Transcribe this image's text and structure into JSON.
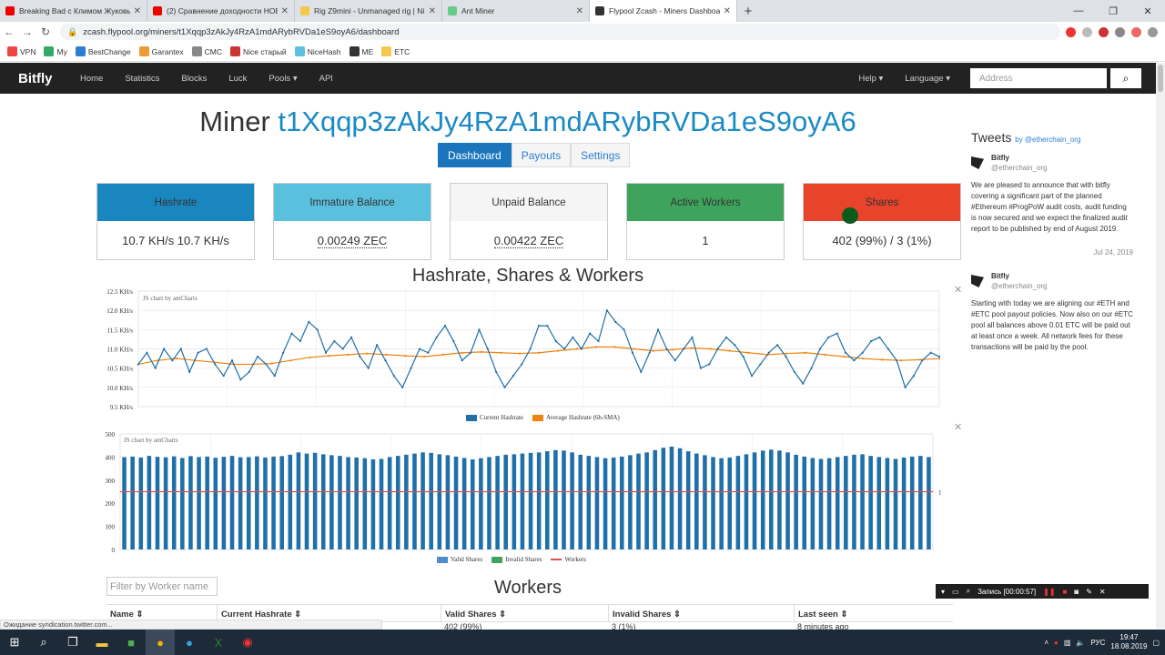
{
  "browser": {
    "tabs": [
      {
        "title": "Breaking Bad с Климом Жуковым",
        "color": "#e00"
      },
      {
        "title": "(2) Сравнение доходности НОВ",
        "color": "#e00"
      },
      {
        "title": "Rig Z9mini - Unmanaged rig | Ni",
        "color": "#f2c94c"
      },
      {
        "title": "Ant Miner",
        "color": "#6c8"
      },
      {
        "title": "Flypool Zcash - Miners Dashboard",
        "color": "#333"
      }
    ],
    "url": "zcash.flypool.org/miners/t1Xqqp3zAkJy4RzA1mdARybRVDa1eS9oyA6/dashboard",
    "bookmarks": [
      "VPN",
      "My",
      "BestChange",
      "Garantex",
      "CMC",
      "Nice старый",
      "NiceHash",
      "ME",
      "ETC"
    ]
  },
  "navbar": {
    "brand": "Bitfly",
    "links": [
      "Home",
      "Statistics",
      "Blocks",
      "Luck",
      "Pools",
      "API"
    ],
    "help": "Help",
    "language": "Language",
    "address_placeholder": "Address"
  },
  "page": {
    "title_prefix": "Miner ",
    "miner_id": "t1Xqqp3zAkJy4RzA1mdARybRVDa1eS9oyA6",
    "tabs": [
      "Dashboard",
      "Payouts",
      "Settings"
    ],
    "cards": [
      {
        "header": "Hashrate",
        "value": "10.7 KH/s  10.7 KH/s",
        "color": "#1a86bf",
        "text": "#333"
      },
      {
        "header": "Immature Balance",
        "value": "0.00249 ZEC",
        "color": "#5bc0de",
        "text": "#333"
      },
      {
        "header": "Unpaid Balance",
        "value": "0.00422 ZEC",
        "color": "#f5f5f5",
        "text": "#333"
      },
      {
        "header": "Active Workers",
        "value": "1",
        "color": "#3ea45d",
        "text": "#333"
      },
      {
        "header": "Shares",
        "value": "402 (99%) / 3 (1%)",
        "color": "#e8432b",
        "text": "#333"
      }
    ],
    "chart_section_title": "Hashrate, Shares & Workers",
    "workers_title": "Workers",
    "filter_placeholder": "Filter by Worker name",
    "table_headers": [
      "Name ⇕",
      "Current Hashrate ⇕",
      "Valid Shares ⇕",
      "Invalid Shares ⇕",
      "Last seen ⇕"
    ],
    "table_row": [
      "",
      "",
      "402 (99%)",
      "3 (1%)",
      "8 minutes ago"
    ]
  },
  "chart_data": [
    {
      "type": "line",
      "credit": "JS chart by amCharts",
      "ylim": [
        9.5,
        12.5
      ],
      "y_ticks": [
        "12.5 KH/s",
        "12.0 KH/s",
        "11.5 KH/s",
        "11.0 KH/s",
        "10.5 KH/s",
        "10.0 KH/s",
        "9.5 KH/s"
      ],
      "series": [
        {
          "name": "Current Hashrate",
          "color": "#1f6fa8",
          "values": [
            10.6,
            10.9,
            10.5,
            11.0,
            10.7,
            11.0,
            10.4,
            10.9,
            11.0,
            10.6,
            10.3,
            10.7,
            10.2,
            10.4,
            10.8,
            10.6,
            10.3,
            10.9,
            11.4,
            11.2,
            11.7,
            11.5,
            10.9,
            11.2,
            11.0,
            11.3,
            10.8,
            10.5,
            11.1,
            10.7,
            10.3,
            10.0,
            10.5,
            11.0,
            10.9,
            11.3,
            11.6,
            11.2,
            10.7,
            10.9,
            11.5,
            11.0,
            10.4,
            10.0,
            10.3,
            10.6,
            11.0,
            11.6,
            11.6,
            11.2,
            11.0,
            11.3,
            11.0,
            11.4,
            11.2,
            12.0,
            11.7,
            11.5,
            10.9,
            10.4,
            10.9,
            11.5,
            11.0,
            10.7,
            11.0,
            11.3,
            10.5,
            10.6,
            11.0,
            11.3,
            11.1,
            10.8,
            10.3,
            10.6,
            10.9,
            11.1,
            10.8,
            10.4,
            10.1,
            10.5,
            11.0,
            11.3,
            11.4,
            10.9,
            10.7,
            10.9,
            11.2,
            11.3,
            11.0,
            10.7,
            10.0,
            10.3,
            10.7,
            10.9,
            10.8
          ],
          "smoothing_note": "oscillating around ~10.7"
        },
        {
          "name": "Average Hashrate (6h-SMA)",
          "color": "#f0820f",
          "values": [
            10.6,
            10.7,
            10.75,
            10.7,
            10.65,
            10.6,
            10.6,
            10.62,
            10.7,
            10.78,
            10.82,
            10.85,
            10.88,
            10.85,
            10.82,
            10.8,
            10.85,
            10.9,
            10.92,
            10.9,
            10.88,
            10.9,
            10.95,
            11.0,
            11.05,
            11.05,
            11.0,
            10.95,
            10.98,
            11.02,
            11.0,
            10.95,
            10.9,
            10.85,
            10.88,
            10.9,
            10.85,
            10.8,
            10.75,
            10.72,
            10.7,
            10.72,
            10.75
          ]
        }
      ]
    },
    {
      "type": "bar",
      "credit": "JS chart by amCharts",
      "ylim": [
        0,
        500
      ],
      "y_ticks": [
        "500",
        "400",
        "300",
        "200",
        "100",
        "0"
      ],
      "right_axis_label": "1",
      "series": [
        {
          "name": "Valid Shares",
          "color": "#1f6fa8",
          "values": [
            400,
            402,
            398,
            405,
            401,
            399,
            403,
            396,
            404,
            400,
            402,
            397,
            401,
            405,
            399,
            400,
            403,
            398,
            402,
            404,
            410,
            420,
            415,
            418,
            412,
            408,
            405,
            400,
            398,
            395,
            390,
            392,
            400,
            405,
            410,
            415,
            420,
            418,
            412,
            408,
            402,
            396,
            390,
            395,
            400,
            405,
            410,
            412,
            415,
            418,
            420,
            425,
            430,
            428,
            420,
            410,
            405,
            400,
            395,
            398,
            402,
            408,
            415,
            420,
            430,
            440,
            445,
            438,
            425,
            415,
            408,
            400,
            395,
            398,
            405,
            412,
            420,
            428,
            432,
            428,
            420,
            410,
            402,
            396,
            392,
            395,
            400,
            405,
            410,
            412,
            405,
            400,
            396,
            392,
            398,
            402,
            405,
            400
          ]
        },
        {
          "name": "Invalid Shares",
          "color": "#3ea45d",
          "values": []
        },
        {
          "name": "Workers",
          "color": "#d9534f",
          "values": [
            1
          ]
        }
      ]
    }
  ],
  "tweets": {
    "header": "Tweets",
    "by": "by @etherchain_org",
    "items": [
      {
        "name": "Bitfly",
        "handle": "@etherchain_org",
        "text": "We are pleased to announce that with bitfly covering a significant part of the planned #Ethereum #ProgPoW audit costs, audit funding is now secured and we expect the finalized audit report to be published by end of August 2019.",
        "date": "Jul 24, 2019"
      },
      {
        "name": "Bitfly",
        "handle": "@etherchain_org",
        "text": "Starting with today we are aligning our #ETH and #ETC pool payout policies. Now also on our #ETC pool all balances above 0.01 ETC will be paid out at least once a week. All network fees for these transactions will be paid by the pool."
      }
    ]
  },
  "overlay": {
    "record_label": "Запись [00:00:57]"
  },
  "status": "Ожидание syndication.twitter.com...",
  "taskbar": {
    "lang": "РУС",
    "time": "19:47",
    "date": "18.08.2019"
  }
}
